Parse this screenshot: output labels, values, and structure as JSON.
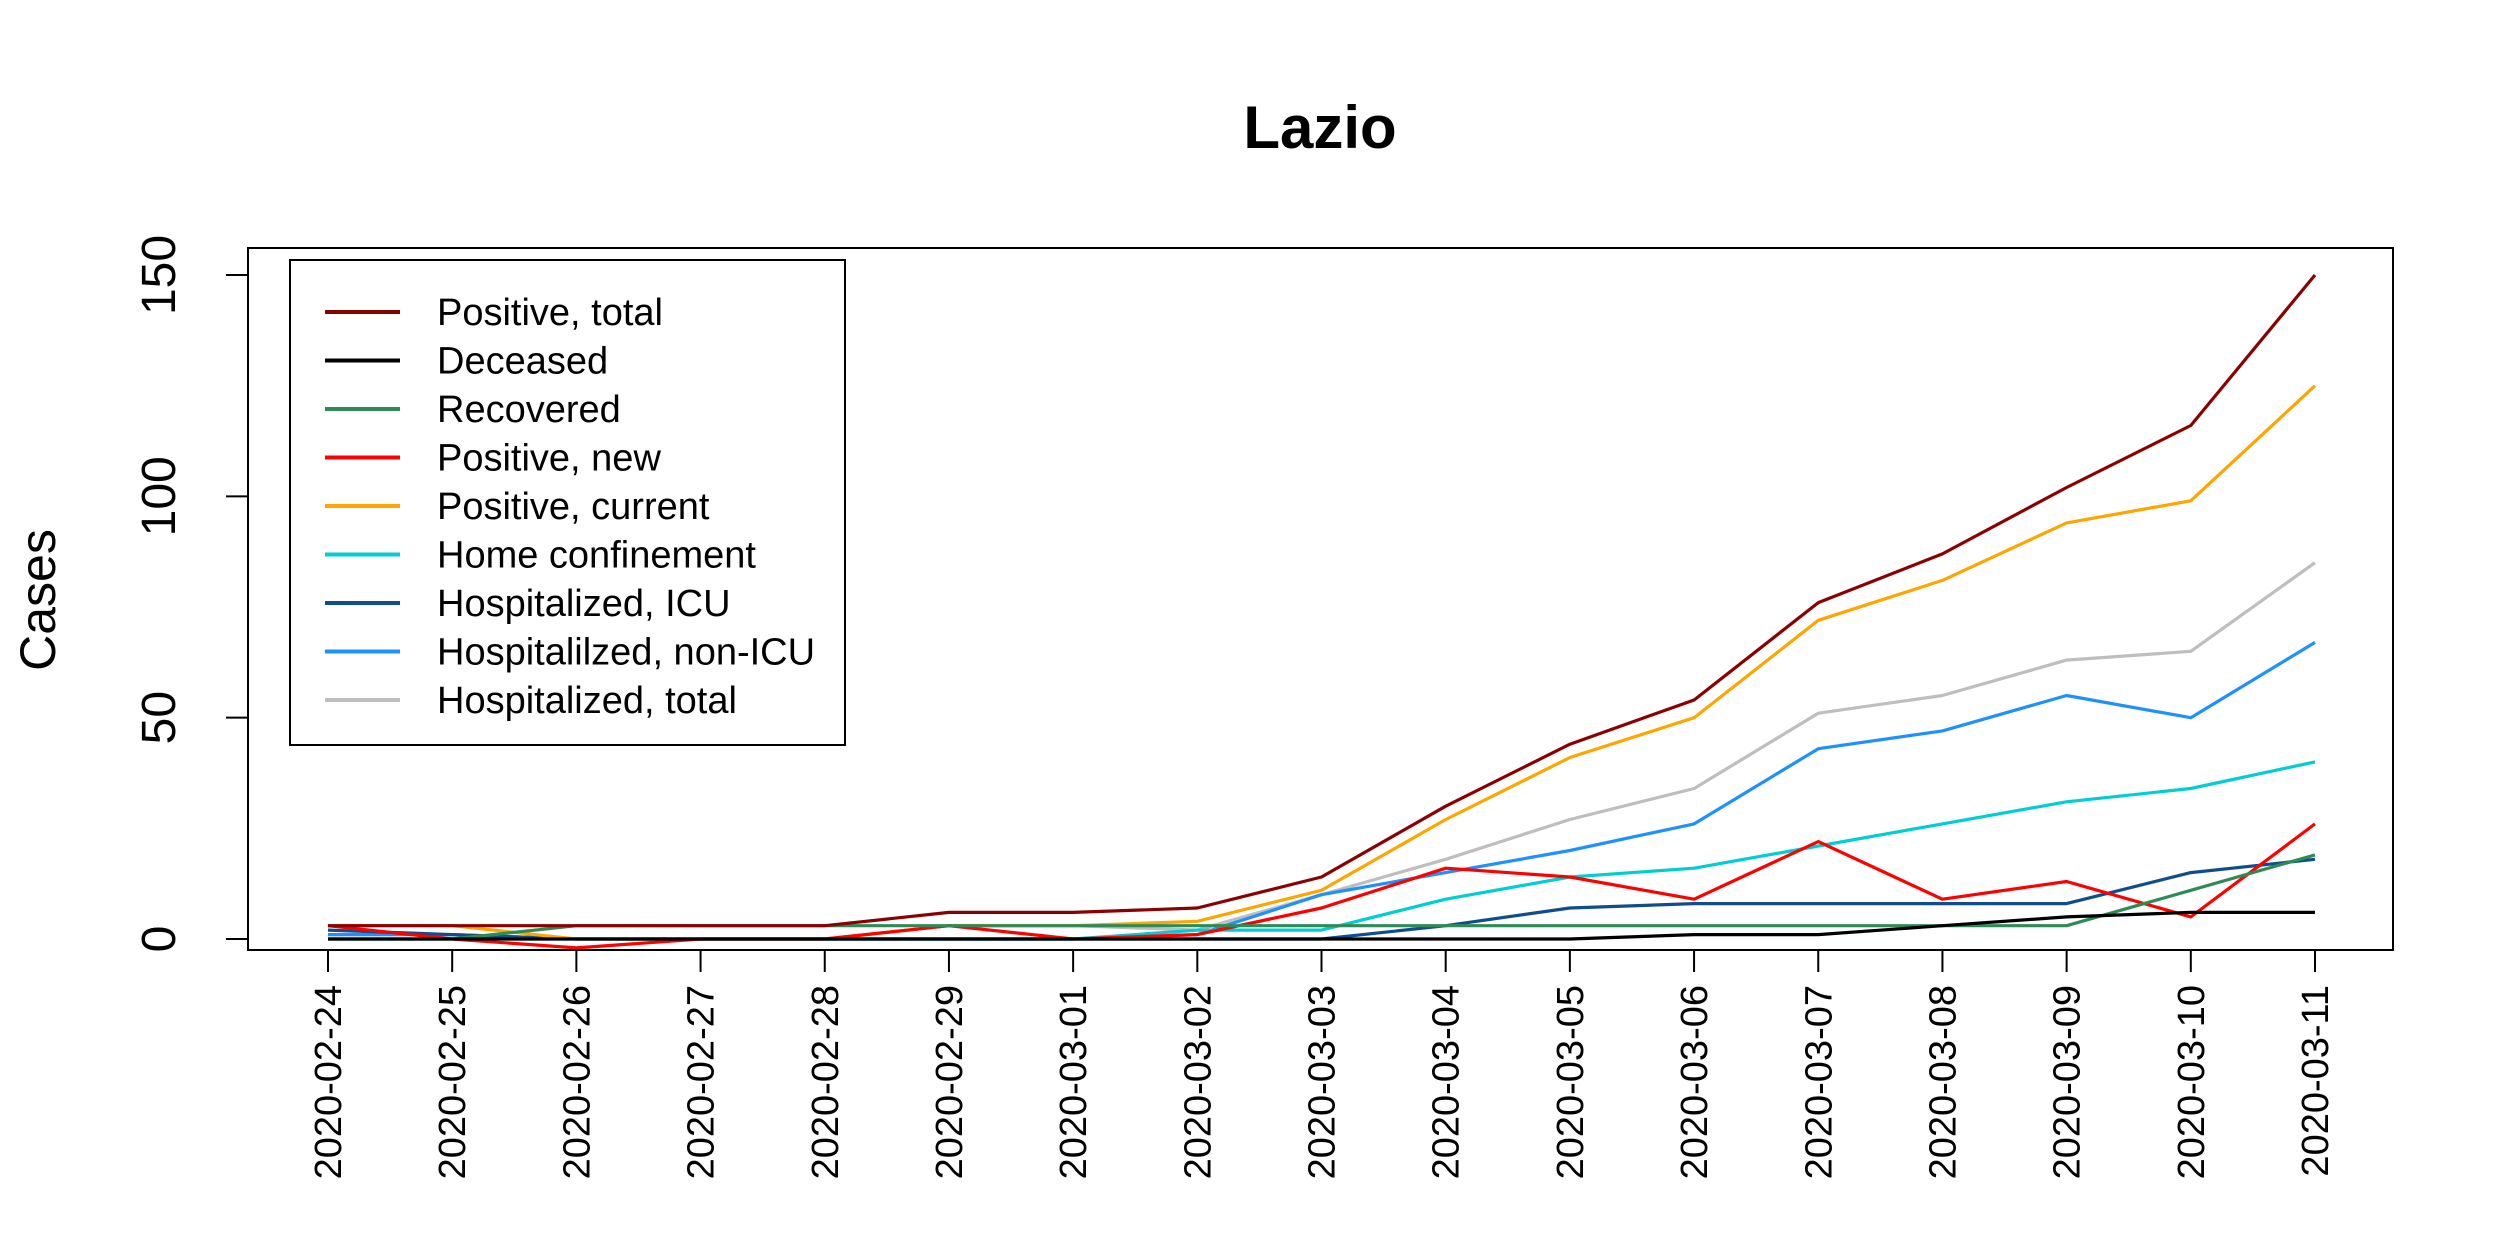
{
  "chart_data": {
    "type": "line",
    "title": "Lazio",
    "xlabel": "",
    "ylabel": "Cases",
    "ylim": [
      -3,
      155
    ],
    "yticks": [
      "0",
      "50",
      "100",
      "150"
    ],
    "grid": false,
    "legend_position": "top-left",
    "x": [
      "2020-02-24",
      "2020-02-25",
      "2020-02-26",
      "2020-02-27",
      "2020-02-28",
      "2020-02-29",
      "2020-03-01",
      "2020-03-02",
      "2020-03-03",
      "2020-03-04",
      "2020-03-05",
      "2020-03-06",
      "2020-03-07",
      "2020-03-08",
      "2020-03-09",
      "2020-03-10",
      "2020-03-11"
    ],
    "series": [
      {
        "name": "Positive, total",
        "color": "#8B0000",
        "values": [
          3,
          3,
          3,
          3,
          3,
          6,
          6,
          7,
          14,
          30,
          44,
          54,
          76,
          87,
          102,
          116,
          150
        ]
      },
      {
        "name": "Deceased",
        "color": "#000000",
        "values": [
          0,
          0,
          0,
          0,
          0,
          0,
          0,
          0,
          0,
          0,
          0,
          1,
          1,
          3,
          5,
          6,
          6
        ]
      },
      {
        "name": "Recovered",
        "color": "#2E8B57",
        "values": [
          0,
          0,
          3,
          3,
          3,
          3,
          3,
          3,
          3,
          3,
          3,
          3,
          3,
          3,
          3,
          11,
          19
        ]
      },
      {
        "name": "Positive, new",
        "color": "#FF0000",
        "values": [
          3,
          0,
          -2,
          0,
          0,
          3,
          0,
          1,
          7,
          16,
          14,
          9,
          22,
          9,
          13,
          5,
          26
        ]
      },
      {
        "name": "Positive, current",
        "color": "#FFA500",
        "values": [
          3,
          3,
          0,
          0,
          0,
          3,
          3,
          4,
          11,
          27,
          41,
          50,
          72,
          81,
          94,
          99,
          125
        ]
      },
      {
        "name": "Home confinement",
        "color": "#00CED1",
        "values": [
          0,
          0,
          0,
          0,
          0,
          0,
          0,
          2,
          2,
          9,
          14,
          16,
          21,
          26,
          31,
          34,
          40
        ]
      },
      {
        "name": "Hospitalized, ICU",
        "color": "#104E8B",
        "values": [
          2,
          1,
          0,
          0,
          0,
          0,
          0,
          0,
          0,
          3,
          7,
          8,
          8,
          8,
          8,
          15,
          18
        ]
      },
      {
        "name": "Hospitalilzed, non-ICU",
        "color": "#1E90FF",
        "values": [
          1,
          1,
          0,
          0,
          0,
          0,
          0,
          1,
          10,
          15,
          20,
          26,
          43,
          47,
          55,
          50,
          67
        ]
      },
      {
        "name": "Hospitalized, total",
        "color": "#BEBEBE",
        "values": [
          1,
          1,
          0,
          0,
          0,
          3,
          3,
          2,
          10,
          18,
          27,
          34,
          51,
          55,
          63,
          65,
          85
        ]
      }
    ]
  }
}
